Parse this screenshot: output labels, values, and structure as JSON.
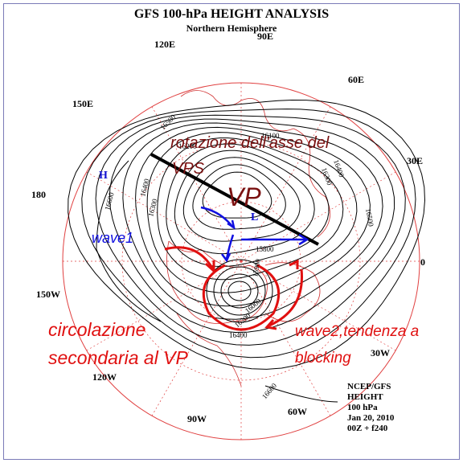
{
  "header": {
    "title": "GFS 100-hPa HEIGHT ANALYSIS",
    "subtitle": "Northern Hemisphere"
  },
  "longitudes": [
    "90E",
    "120E",
    "60E",
    "150E",
    "30E",
    "180",
    "0",
    "150W",
    "30W",
    "120W",
    "90W",
    "60W"
  ],
  "pressure_centers": [
    "H",
    "L"
  ],
  "contour_labels": [
    16500,
    16600,
    16400,
    16300,
    16200,
    16100,
    16300,
    16400,
    16500,
    15800,
    15900,
    16000,
    16200,
    16400,
    16600
  ],
  "annotations": [
    "rotazione dell'asse del",
    "VPS",
    "VP",
    "wave1",
    "circolazione",
    "secondaria al VP",
    "wave2,tendenza a",
    "blocking"
  ],
  "footer": [
    "NCEP/GFS",
    "HEIGHT",
    "100 hPa",
    "Jan 20, 2010",
    "00Z + f240"
  ]
}
